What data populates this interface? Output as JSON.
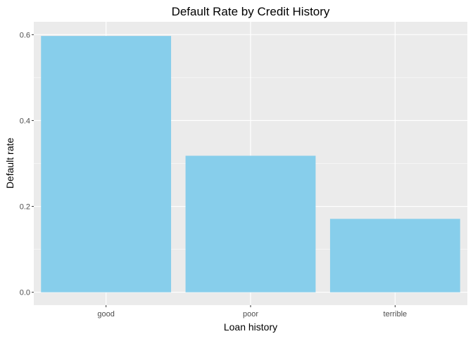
{
  "chart_data": {
    "type": "bar",
    "title": "Default Rate by Credit History",
    "xlabel": "Loan history",
    "ylabel": "Default rate",
    "categories": [
      "good",
      "poor",
      "terrible"
    ],
    "values": [
      0.597,
      0.318,
      0.171
    ],
    "ylim": [
      -0.03,
      0.63
    ],
    "yticks": [
      0.0,
      0.2,
      0.4,
      0.6
    ],
    "ytick_labels": [
      "0.0",
      "0.2",
      "0.4",
      "0.6"
    ],
    "grid": true,
    "legend": "none",
    "colors": {
      "bar": "#87CEEB",
      "panel": "#EBEBEB",
      "grid": "#FFFFFF"
    }
  }
}
